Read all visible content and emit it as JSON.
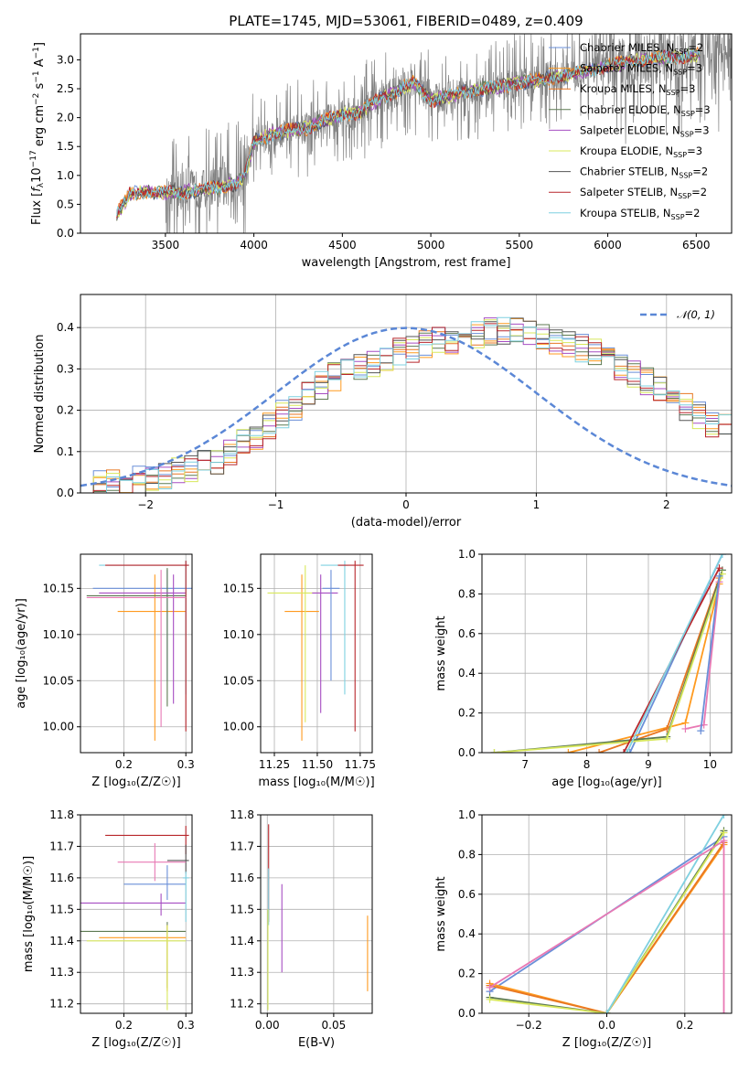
{
  "title": "PLATE=1745, MJD=53061, FIBERID=0489, z=0.409",
  "colors": {
    "chabrier_miles": "#6a8fd8",
    "salpeter_miles": "#ff9a1f",
    "kroupa_miles": "#e87722",
    "chabrier_elodie": "#5d7a52",
    "salpeter_elodie": "#a64dc2",
    "kroupa_elodie": "#d8e85c",
    "chabrier_stelib": "#555555",
    "salpeter_stelib": "#b8262b",
    "kroupa_stelib": "#7fd0e0",
    "data": "#808080",
    "normal": "#5b87d6",
    "pink": "#e879b4",
    "grid": "#b0b0b0"
  },
  "chart_data": [
    {
      "id": "spectrum",
      "type": "line",
      "xlabel": "wavelength [Angstrom, rest frame]",
      "ylabel_parts": [
        "Flux [",
        "f",
        "λ",
        "10",
        "−17",
        " erg cm",
        "−2",
        " s",
        "−1",
        " A",
        "−1",
        "]"
      ],
      "xlim": [
        3020,
        6700
      ],
      "ylim": [
        0,
        3.45
      ],
      "xticks": [
        3500,
        4000,
        4500,
        5000,
        5500,
        6000,
        6500
      ],
      "xtick_labels": [
        "3500",
        "4000",
        "4500",
        "5000",
        "5500",
        "6000",
        "6500"
      ],
      "yticks": [
        0.0,
        0.5,
        1.0,
        1.5,
        2.0,
        2.5,
        3.0
      ],
      "ytick_labels": [
        "0.0",
        "0.5",
        "1.0",
        "1.5",
        "2.0",
        "2.5",
        "3.0"
      ],
      "model_continuum": {
        "x": [
          3230,
          3300,
          3400,
          3500,
          3600,
          3700,
          3800,
          3900,
          3950,
          4000,
          4100,
          4200,
          4300,
          4400,
          4500,
          4600,
          4700,
          4800,
          4900,
          5000,
          5200,
          5400,
          5600,
          5800,
          6000,
          6200,
          6400,
          6520
        ],
        "y": [
          0.35,
          0.68,
          0.72,
          0.7,
          0.72,
          0.75,
          0.8,
          0.85,
          1.0,
          1.6,
          1.7,
          1.78,
          1.82,
          1.95,
          2.05,
          2.1,
          2.3,
          2.45,
          2.6,
          2.3,
          2.45,
          2.55,
          2.65,
          2.75,
          2.9,
          3.0,
          3.05,
          3.1
        ]
      },
      "legend": [
        {
          "imf": "Chabrier",
          "lib": "MILES",
          "n": "2",
          "color_key": "chabrier_miles"
        },
        {
          "imf": "Salpeter",
          "lib": "MILES",
          "n": "3",
          "color_key": "salpeter_miles"
        },
        {
          "imf": "Kroupa",
          "lib": "MILES",
          "n": "3",
          "color_key": "kroupa_miles"
        },
        {
          "imf": "Chabrier",
          "lib": "ELODIE",
          "n": "3",
          "color_key": "chabrier_elodie"
        },
        {
          "imf": "Salpeter",
          "lib": "ELODIE",
          "n": "3",
          "color_key": "salpeter_elodie"
        },
        {
          "imf": "Kroupa",
          "lib": "ELODIE",
          "n": "3",
          "color_key": "kroupa_elodie"
        },
        {
          "imf": "Chabrier",
          "lib": "STELIB",
          "n": "2",
          "color_key": "chabrier_stelib"
        },
        {
          "imf": "Salpeter",
          "lib": "STELIB",
          "n": "2",
          "color_key": "salpeter_stelib"
        },
        {
          "imf": "Kroupa",
          "lib": "STELIB",
          "n": "2",
          "color_key": "kroupa_stelib"
        }
      ],
      "legend_placement": "upper-right"
    },
    {
      "id": "residuals",
      "type": "step-histogram",
      "xlabel": "(data-model)/error",
      "ylabel": "Normed distribution",
      "xlim": [
        -2.5,
        2.5
      ],
      "ylim": [
        0,
        0.48
      ],
      "xticks": [
        -2,
        -1,
        0,
        1,
        2
      ],
      "xtick_labels": [
        "−2",
        "−1",
        "0",
        "1",
        "2"
      ],
      "yticks": [
        0.0,
        0.1,
        0.2,
        0.3,
        0.4
      ],
      "ytick_labels": [
        "0.0",
        "0.1",
        "0.2",
        "0.3",
        "0.4"
      ],
      "bin_width": 0.1,
      "bins_x0": -2.5,
      "base_heights": [
        0.02,
        0.02,
        0.03,
        0.03,
        0.03,
        0.04,
        0.04,
        0.05,
        0.06,
        0.07,
        0.08,
        0.1,
        0.12,
        0.14,
        0.16,
        0.19,
        0.21,
        0.24,
        0.26,
        0.28,
        0.29,
        0.3,
        0.31,
        0.32,
        0.34,
        0.35,
        0.36,
        0.37,
        0.37,
        0.38,
        0.38,
        0.39,
        0.39,
        0.39,
        0.39,
        0.38,
        0.37,
        0.36,
        0.35,
        0.34,
        0.32,
        0.3,
        0.29,
        0.27,
        0.25,
        0.23,
        0.21,
        0.19,
        0.17,
        0.16
      ],
      "normal_label": "𝒩(0, 1)",
      "legend_placement": "upper-right"
    },
    {
      "id": "age_vs_Z",
      "type": "errorbar",
      "xlabel": "Z [log₁₀(Z/Z☉)]",
      "ylabel": "age  [log₁₀(age/yr)]",
      "xlim": [
        0.13,
        0.31
      ],
      "ylim": [
        9.972,
        10.187
      ],
      "xticks": [
        0.2,
        0.3
      ],
      "xtick_labels": [
        "0.2",
        "0.3"
      ],
      "yticks": [
        10.0,
        10.05,
        10.1,
        10.15
      ],
      "ytick_labels": [
        "10.00",
        "10.05",
        "10.10",
        "10.15"
      ],
      "points": [
        {
          "x": 0.27,
          "y": 10.15,
          "xerr": [
            0.12,
            0.04
          ],
          "yerr": [
            0.1,
            0.02
          ],
          "color_key": "chabrier_miles"
        },
        {
          "x": 0.25,
          "y": 10.125,
          "xerr": [
            0.06,
            0.05
          ],
          "yerr": [
            0.14,
            0.04
          ],
          "color_key": "salpeter_miles"
        },
        {
          "x": 0.27,
          "y": 10.142,
          "xerr": [
            0.13,
            0.03
          ],
          "yerr": [
            0.12,
            0.03
          ],
          "color_key": "chabrier_elodie"
        },
        {
          "x": 0.28,
          "y": 10.145,
          "xerr": [
            0.12,
            0.02
          ],
          "yerr": [
            0.12,
            0.02
          ],
          "color_key": "salpeter_elodie"
        },
        {
          "x": 0.3,
          "y": 10.175,
          "xerr": [
            0.14,
            0.005
          ],
          "yerr": [
            0.14,
            0.005
          ],
          "color_key": "kroupa_stelib"
        },
        {
          "x": 0.3,
          "y": 10.175,
          "xerr": [
            0.13,
            0.005
          ],
          "yerr": [
            0.18,
            0.005
          ],
          "color_key": "salpeter_stelib"
        },
        {
          "x": 0.26,
          "y": 10.14,
          "xerr": [
            0.12,
            0.04
          ],
          "yerr": [
            0.14,
            0.03
          ],
          "color_key": "pink"
        }
      ]
    },
    {
      "id": "age_vs_mass",
      "type": "errorbar",
      "xlabel": "mass [log₁₀(M/M☉)]",
      "ylabel": "",
      "xlim": [
        11.17,
        11.82
      ],
      "ylim": [
        9.972,
        10.187
      ],
      "xticks": [
        11.25,
        11.5,
        11.75
      ],
      "xtick_labels": [
        "11.25",
        "11.50",
        "11.75"
      ],
      "yticks": [
        10.0,
        10.05,
        10.1,
        10.15
      ],
      "ytick_labels": [
        "10.00",
        "10.05",
        "10.10",
        "10.15"
      ],
      "points": [
        {
          "x": 11.41,
          "y": 10.125,
          "xerr": [
            0.1,
            0.1
          ],
          "yerr": [
            0.14,
            0.04
          ],
          "color_key": "salpeter_miles"
        },
        {
          "x": 11.43,
          "y": 10.145,
          "xerr": [
            0.22,
            0.08
          ],
          "yerr": [
            0.14,
            0.03
          ],
          "color_key": "kroupa_elodie"
        },
        {
          "x": 11.52,
          "y": 10.145,
          "xerr": [
            0.05,
            0.1
          ],
          "yerr": [
            0.13,
            0.02
          ],
          "color_key": "salpeter_elodie"
        },
        {
          "x": 11.58,
          "y": 10.15,
          "xerr": [
            0.05,
            0.05
          ],
          "yerr": [
            0.1,
            0.02
          ],
          "color_key": "chabrier_miles"
        },
        {
          "x": 11.66,
          "y": 10.175,
          "xerr": [
            0.14,
            0.02
          ],
          "yerr": [
            0.14,
            0.005
          ],
          "color_key": "kroupa_stelib"
        },
        {
          "x": 11.72,
          "y": 10.175,
          "xerr": [
            0.1,
            0.05
          ],
          "yerr": [
            0.18,
            0.005
          ],
          "color_key": "salpeter_stelib"
        }
      ]
    },
    {
      "id": "mass_weight_vs_age",
      "type": "line",
      "xlabel": "age  [log₁₀(age/yr)]",
      "ylabel": "mass weight",
      "xlim": [
        6.3,
        10.35
      ],
      "ylim": [
        0,
        1
      ],
      "xticks": [
        7,
        8,
        9,
        10
      ],
      "xtick_labels": [
        "7",
        "8",
        "9",
        "10"
      ],
      "yticks": [
        0.0,
        0.2,
        0.4,
        0.6,
        0.8,
        1.0
      ],
      "ytick_labels": [
        "0.0",
        "0.2",
        "0.4",
        "0.6",
        "0.8",
        "1.0"
      ],
      "series": [
        {
          "color_key": "chabrier_miles",
          "x": [
            8.7,
            10.2
          ],
          "y": [
            0.0,
            1.0
          ]
        },
        {
          "color_key": "salpeter_miles",
          "x": [
            7.7,
            9.6,
            10.15
          ],
          "y": [
            0.0,
            0.15,
            0.85
          ]
        },
        {
          "color_key": "kroupa_miles",
          "x": [
            8.2,
            9.3,
            10.15
          ],
          "y": [
            0.0,
            0.12,
            0.88
          ]
        },
        {
          "color_key": "chabrier_elodie",
          "x": [
            6.5,
            9.3,
            10.2
          ],
          "y": [
            0.0,
            0.08,
            0.92
          ]
        },
        {
          "color_key": "kroupa_elodie",
          "x": [
            6.5,
            9.3,
            10.2
          ],
          "y": [
            0.0,
            0.07,
            0.9
          ]
        },
        {
          "color_key": "salpeter_stelib",
          "x": [
            8.6,
            10.15
          ],
          "y": [
            0.0,
            0.93
          ]
        },
        {
          "color_key": "kroupa_stelib",
          "x": [
            8.65,
            10.2
          ],
          "y": [
            0.0,
            1.0
          ]
        },
        {
          "color_key": "pink",
          "x": [
            9.6,
            9.9,
            10.15
          ],
          "y": [
            0.12,
            0.14,
            0.86
          ]
        },
        {
          "color_key": "chabrier_miles",
          "x": [
            9.85,
            10.15
          ],
          "y": [
            0.11,
            0.89
          ]
        }
      ]
    },
    {
      "id": "mass_vs_Z",
      "type": "errorbar",
      "xlabel": "Z [log₁₀(Z/Z☉)]",
      "ylabel": "mass [log₁₀(M/M☉)]",
      "xlim": [
        0.13,
        0.31
      ],
      "ylim": [
        11.17,
        11.8
      ],
      "xticks": [
        0.2,
        0.3
      ],
      "xtick_labels": [
        "0.2",
        "0.3"
      ],
      "yticks": [
        11.2,
        11.3,
        11.4,
        11.5,
        11.6,
        11.7,
        11.8
      ],
      "ytick_labels": [
        "11.2",
        "11.3",
        "11.4",
        "11.5",
        "11.6",
        "11.7",
        "11.8"
      ],
      "points": [
        {
          "x": 0.3,
          "y": 11.735,
          "xerr": [
            0.13,
            0.005
          ],
          "yerr": [
            0.06,
            0.03
          ],
          "color_key": "salpeter_stelib"
        },
        {
          "x": 0.3,
          "y": 11.655,
          "xerr": [
            0.03,
            0.005
          ],
          "yerr": [
            0.04,
            0.05
          ],
          "color_key": "chabrier_stelib"
        },
        {
          "x": 0.25,
          "y": 11.65,
          "xerr": [
            0.06,
            0.05
          ],
          "yerr": [
            0.06,
            0.06
          ],
          "color_key": "pink"
        },
        {
          "x": 0.27,
          "y": 11.58,
          "xerr": [
            0.07,
            0.03
          ],
          "yerr": [
            0.05,
            0.06
          ],
          "color_key": "chabrier_miles"
        },
        {
          "x": 0.26,
          "y": 11.52,
          "xerr": [
            0.16,
            0.04
          ],
          "yerr": [
            0.04,
            0.03
          ],
          "color_key": "salpeter_elodie"
        },
        {
          "x": 0.27,
          "y": 11.43,
          "xerr": [
            0.14,
            0.03
          ],
          "yerr": [
            0.18,
            0.03
          ],
          "color_key": "chabrier_elodie"
        },
        {
          "x": 0.27,
          "y": 11.41,
          "xerr": [
            0.11,
            0.03
          ],
          "yerr": [
            0.17,
            0.04
          ],
          "color_key": "salpeter_miles"
        },
        {
          "x": 0.27,
          "y": 11.4,
          "xerr": [
            0.13,
            0.03
          ],
          "yerr": [
            0.22,
            0.05
          ],
          "color_key": "kroupa_elodie"
        },
        {
          "x": 0.3,
          "y": 11.6,
          "xerr": [
            0.005,
            0.005
          ],
          "yerr": [
            0.14,
            0.02
          ],
          "color_key": "kroupa_stelib"
        }
      ]
    },
    {
      "id": "mass_vs_ebv",
      "type": "errorbar",
      "xlabel": "E(B-V)",
      "ylabel": "",
      "xlim": [
        -0.005,
        0.079
      ],
      "ylim": [
        11.17,
        11.8
      ],
      "xticks": [
        0.0,
        0.05
      ],
      "xtick_labels": [
        "0.00",
        "0.05"
      ],
      "yticks": [
        11.2,
        11.3,
        11.4,
        11.5,
        11.6,
        11.7,
        11.8
      ],
      "ytick_labels": [
        "11.2",
        "11.3",
        "11.4",
        "11.5",
        "11.6",
        "11.7",
        "11.8"
      ],
      "points": [
        {
          "x": 0.001,
          "y": 11.6,
          "xerr": [
            0,
            0
          ],
          "yerr": [
            0.14,
            0.17
          ],
          "color_key": "salpeter_stelib"
        },
        {
          "x": 0.001,
          "y": 11.55,
          "xerr": [
            0,
            0
          ],
          "yerr": [
            0.1,
            0.08
          ],
          "color_key": "kroupa_stelib"
        },
        {
          "x": 0.0005,
          "y": 11.35,
          "xerr": [
            0,
            0
          ],
          "yerr": [
            0.17,
            0.15
          ],
          "color_key": "kroupa_elodie"
        },
        {
          "x": 0.011,
          "y": 11.44,
          "xerr": [
            0,
            0
          ],
          "yerr": [
            0.14,
            0.14
          ],
          "color_key": "salpeter_elodie"
        },
        {
          "x": 0.0755,
          "y": 11.36,
          "xerr": [
            0,
            0
          ],
          "yerr": [
            0.12,
            0.12
          ],
          "color_key": "salpeter_miles"
        }
      ]
    },
    {
      "id": "mass_weight_vs_Z",
      "type": "line",
      "xlabel": "Z [log₁₀(Z/Z☉)]",
      "ylabel": "mass weight",
      "xlim": [
        -0.32,
        0.32
      ],
      "ylim": [
        0,
        1
      ],
      "xticks": [
        -0.2,
        0.0,
        0.2
      ],
      "xtick_labels": [
        "−0.2",
        "0.0",
        "0.2"
      ],
      "yticks": [
        0.0,
        0.2,
        0.4,
        0.6,
        0.8,
        1.0
      ],
      "ytick_labels": [
        "0.0",
        "0.2",
        "0.4",
        "0.6",
        "0.8",
        "1.0"
      ],
      "series": [
        {
          "color_key": "chabrier_miles",
          "x": [
            -0.3,
            0.3
          ],
          "y": [
            0.11,
            0.89
          ]
        },
        {
          "color_key": "salpeter_miles",
          "x": [
            -0.3,
            0.0,
            0.3
          ],
          "y": [
            0.15,
            0.0,
            0.85
          ]
        },
        {
          "color_key": "kroupa_miles",
          "x": [
            -0.3,
            0.0,
            0.3
          ],
          "y": [
            0.14,
            0.0,
            0.86
          ]
        },
        {
          "color_key": "chabrier_elodie",
          "x": [
            -0.3,
            0.0,
            0.3
          ],
          "y": [
            0.08,
            0.0,
            0.92
          ]
        },
        {
          "color_key": "kroupa_elodie",
          "x": [
            -0.3,
            0.0,
            0.3
          ],
          "y": [
            0.07,
            0.0,
            0.91
          ]
        },
        {
          "color_key": "kroupa_stelib",
          "x": [
            0.0,
            0.3
          ],
          "y": [
            0.0,
            1.0
          ]
        },
        {
          "color_key": "pink",
          "x": [
            -0.3,
            0.3,
            0.3
          ],
          "y": [
            0.13,
            0.87,
            0.0
          ]
        }
      ]
    }
  ]
}
